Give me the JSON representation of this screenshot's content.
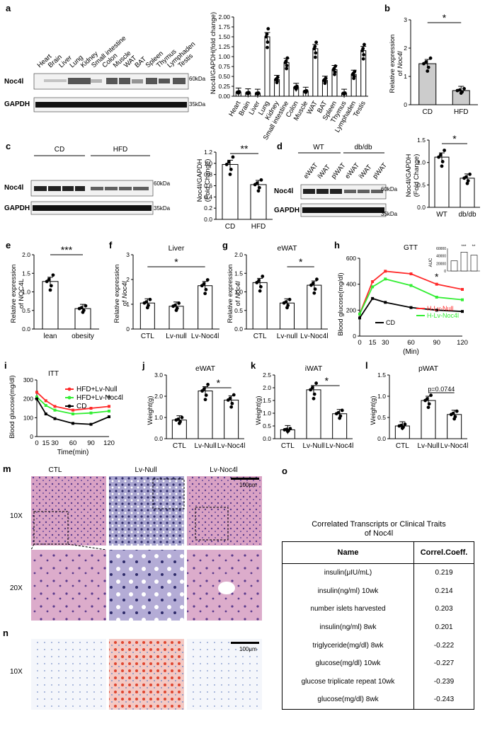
{
  "panels": {
    "a": "a",
    "b": "b",
    "c": "c",
    "d": "d",
    "e": "e",
    "f": "f",
    "g": "g",
    "h": "h",
    "i": "i",
    "j": "j",
    "k": "k",
    "l": "l",
    "m": "m",
    "n": "n",
    "o": "o"
  },
  "blot_a": {
    "tissues": [
      "Heart",
      "Brain",
      "Liver",
      "Lung",
      "Kidney",
      "Small intestine",
      "Colon",
      "Muscle",
      "WAT",
      "BAT",
      "Spleen",
      "Thymus",
      "Lymphaden",
      "Testis"
    ],
    "row1": "Noc4l",
    "row2": "GAPDH",
    "kda1": "60kDa",
    "kda2": "35kDa"
  },
  "blot_c": {
    "groups": [
      "CD",
      "HFD"
    ],
    "row1": "Noc4l",
    "row2": "GAPDH",
    "kda1": "60kDa",
    "kda2": "35kDa"
  },
  "blot_d": {
    "groups": [
      "WT",
      "db/db"
    ],
    "lanes": [
      "eWAT",
      "iWAT",
      "pWAT",
      "eWAT",
      "iWAT",
      "pWAT"
    ],
    "row1": "Noc4l",
    "row2": "GAPDH",
    "kda1": "60kDa",
    "kda2": "35kDa"
  },
  "chart_data": [
    {
      "panel": "a",
      "type": "bar",
      "ylabel": "Noc4l/GAPDH(fold change)",
      "categories": [
        "Heart",
        "Brain",
        "Liver",
        "Lung",
        "Kidney",
        "Small intestine",
        "Colon",
        "Muscle",
        "WAT",
        "BAT",
        "Spleen",
        "Thymus",
        "Lymphaden",
        "Testis"
      ],
      "values": [
        0.1,
        0.08,
        0.07,
        1.5,
        0.42,
        0.85,
        0.22,
        0.12,
        1.2,
        0.4,
        0.67,
        0.07,
        0.55,
        1.15
      ],
      "ylim": [
        0,
        2.0
      ],
      "yticks": [
        "0.00",
        "0.25",
        "0.50",
        "0.75",
        "1.00",
        "1.25",
        "1.50",
        "1.75",
        "2.00"
      ]
    },
    {
      "panel": "b",
      "type": "bar",
      "ylabel": "Relative expression of Noc4l",
      "categories": [
        "CD",
        "HFD"
      ],
      "values": [
        1.45,
        0.5
      ],
      "ylim": [
        0,
        3
      ],
      "yticks": [
        "0",
        "1",
        "2",
        "3"
      ],
      "sig": "*"
    },
    {
      "panel": "c",
      "type": "bar",
      "ylabel": "Noc4l/GAPDH (Fold Change)",
      "categories": [
        "CD",
        "HFD"
      ],
      "values": [
        0.98,
        0.62
      ],
      "ylim": [
        0,
        1.2
      ],
      "yticks": [
        "0.0",
        "0.2",
        "0.4",
        "0.6",
        "0.8",
        "1.0",
        "1.2"
      ],
      "sig": "**"
    },
    {
      "panel": "d",
      "type": "bar",
      "ylabel": "Noc4l/GAPDH (Fold Change)",
      "categories": [
        "WT",
        "db/db"
      ],
      "values": [
        1.12,
        0.65
      ],
      "ylim": [
        0,
        1.5
      ],
      "yticks": [
        "0.0",
        "0.5",
        "1.0",
        "1.5"
      ],
      "sig": "*"
    },
    {
      "panel": "e",
      "type": "bar",
      "ylabel": "Relative expression of NOC4L",
      "categories": [
        "lean",
        "obesity"
      ],
      "values": [
        1.28,
        0.55
      ],
      "ylim": [
        0,
        2.0
      ],
      "yticks": [
        "0.0",
        "0.5",
        "1.0",
        "1.5",
        "2.0"
      ],
      "sig": "***"
    },
    {
      "panel": "f",
      "type": "bar",
      "title": "Liver",
      "ylabel": "Relative expression of Noc4l",
      "categories": [
        "CTL",
        "Lv-null",
        "Lv-Noc4l"
      ],
      "values": [
        1.05,
        0.92,
        1.75
      ],
      "ylim": [
        0,
        3
      ],
      "yticks": [
        "0",
        "1",
        "2",
        "3"
      ],
      "sig": "*"
    },
    {
      "panel": "g",
      "type": "bar",
      "title": "eWAT",
      "ylabel": "Relative expression of Noc4l",
      "categories": [
        "CTL",
        "Lv-null",
        "Lv-Noc4l"
      ],
      "values": [
        1.25,
        0.7,
        1.18
      ],
      "ylim": [
        0,
        2.0
      ],
      "yticks": [
        "0.0",
        "0.5",
        "1.0",
        "1.5",
        "2.0"
      ],
      "sig": "*"
    },
    {
      "panel": "h",
      "type": "line",
      "title": "GTT",
      "xlabel": "(Min)",
      "ylabel": "Blood glucose(mg/dl)",
      "x": [
        0,
        15,
        30,
        60,
        90,
        120
      ],
      "ylim": [
        0,
        600
      ],
      "yticks": [
        "0",
        "200",
        "400",
        "600"
      ],
      "series": [
        {
          "name": "CD",
          "color": "#000000",
          "values": [
            140,
            290,
            260,
            220,
            200,
            190
          ]
        },
        {
          "name": "H-Lv-Null",
          "color": "#ff2a2a",
          "values": [
            170,
            420,
            500,
            480,
            400,
            360
          ]
        },
        {
          "name": "H-Lv-Noc4l",
          "color": "#33ee33",
          "values": [
            170,
            380,
            440,
            390,
            300,
            280
          ]
        }
      ],
      "inset": {
        "ylabel": "AUC",
        "yticks": [
          "0",
          "20000",
          "40000",
          "60000"
        ],
        "values": [
          27000,
          50000,
          42000
        ],
        "marks": [
          "***",
          "**"
        ]
      }
    },
    {
      "panel": "i",
      "type": "line",
      "title": "ITT",
      "xlabel": "Time(min)",
      "ylabel": "Blood glucose(mg/dl)",
      "x": [
        0,
        15,
        30,
        60,
        90,
        120
      ],
      "ylim": [
        0,
        300
      ],
      "yticks": [
        "0",
        "100",
        "200",
        "300"
      ],
      "series": [
        {
          "name": "HFD+Lv-Null",
          "color": "#ff2a2a",
          "values": [
            235,
            190,
            160,
            140,
            150,
            160
          ]
        },
        {
          "name": "HFD+Lv-Noc4l",
          "color": "#33ee33",
          "values": [
            210,
            165,
            140,
            120,
            125,
            135
          ]
        },
        {
          "name": "CD",
          "color": "#000000",
          "values": [
            200,
            120,
            95,
            70,
            65,
            105
          ]
        }
      ],
      "sig": "*"
    },
    {
      "panel": "j",
      "type": "bar",
      "title": "eWAT",
      "ylabel": "Weight(g)",
      "categories": [
        "CTL",
        "Lv-Null",
        "Lv-Noc4l"
      ],
      "values": [
        0.88,
        2.25,
        1.82
      ],
      "ylim": [
        0,
        3.0
      ],
      "yticks": [
        "0.0",
        "1.0",
        "2.0",
        "3.0"
      ],
      "sig": "*"
    },
    {
      "panel": "k",
      "type": "bar",
      "title": "iWAT",
      "ylabel": "Weight(g)",
      "categories": [
        "CTL",
        "Lv-Null",
        "Lv-Noc4l"
      ],
      "values": [
        0.35,
        1.92,
        0.98
      ],
      "ylim": [
        0,
        2.5
      ],
      "yticks": [
        "0.0",
        "0.5",
        "1.0",
        "1.5",
        "2.0",
        "2.5"
      ],
      "sig": "*"
    },
    {
      "panel": "l",
      "type": "bar",
      "title": "pWAT",
      "ylabel": "Weight(g)",
      "categories": [
        "CTL",
        "Lv-Null",
        "Lv-Noc4l"
      ],
      "values": [
        0.3,
        0.9,
        0.57
      ],
      "ylim": [
        0,
        1.5
      ],
      "yticks": [
        "0.0",
        "0.5",
        "1.0",
        "1.5"
      ],
      "sig": "p=0.0744"
    }
  ],
  "histology": {
    "cols": [
      "CTL",
      "Lv-Null",
      "Lv-Noc4l"
    ],
    "rows_m": [
      "10X",
      "20X"
    ],
    "row_n": "10X",
    "scale": "100μm"
  },
  "correlation": {
    "title": "Correlated Transcripts or Clinical Traits of Noc4l",
    "col_name": "Name",
    "col_coeff": "Correl.Coeff.",
    "rows": [
      {
        "name": "insulin(μIU/mL)",
        "coeff": "0.219"
      },
      {
        "name": "insulin(ng/ml) 10wk",
        "coeff": "0.214"
      },
      {
        "name": "number islets harvested",
        "coeff": "0.203"
      },
      {
        "name": "insulin(ng/ml) 8wk",
        "coeff": "0.201"
      },
      {
        "name": "triglyceride(mg/dl) 8wk",
        "coeff": "-0.222"
      },
      {
        "name": "glucose(mg/dl) 10wk",
        "coeff": "-0.227"
      },
      {
        "name": "glucose triplicate repeat 10wk",
        "coeff": "-0.239"
      },
      {
        "name": "glucose(mg/dl) 8wk",
        "coeff": "-0.243"
      }
    ]
  }
}
